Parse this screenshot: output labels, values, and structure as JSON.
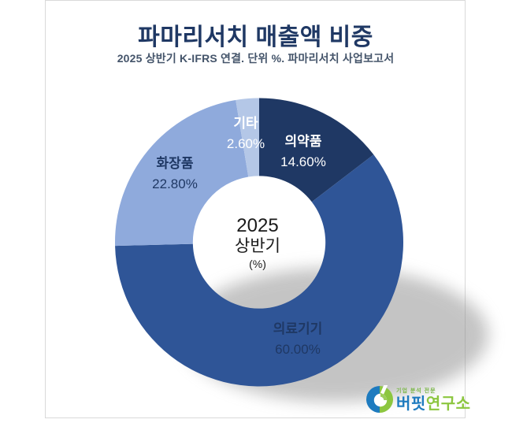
{
  "page": {
    "background": "#FFFFFF",
    "frame_border_color": "#D9D9D9"
  },
  "header": {
    "title": "파마리서치 매출액 비중",
    "subtitle": "2025 상반기 K-IFRS 연결. 단위 %. 파마리서치 사업보고서",
    "title_color": "#1F3864"
  },
  "chart_data": {
    "type": "pie",
    "variant": "donut",
    "title": "파마리서치 매출액 비중",
    "subtitle": "2025 상반기 K-IFRS 연결. 단위 %. 파마리서치 사업보고서",
    "unit": "%",
    "start_angle_deg": 0,
    "direction": "clockwise",
    "inner_radius_ratio": 0.46,
    "legend_position": "none",
    "center_label": {
      "line1": "2025",
      "line2": "상반기",
      "line3": "(%)"
    },
    "slices": [
      {
        "label": "의약품",
        "value": 14.6,
        "display": "14.60%",
        "color": "#1F3864",
        "label_color": "#FFFFFF"
      },
      {
        "label": "의료기기",
        "value": 60.0,
        "display": "60.00%",
        "color": "#2F5597",
        "label_color": "#1F3864"
      },
      {
        "label": "화장품",
        "value": 22.8,
        "display": "22.80%",
        "color": "#8FAADC",
        "label_color": "#1F3864"
      },
      {
        "label": "기타",
        "value": 2.6,
        "display": "2.60%",
        "color": "#B4C7E7",
        "label_color": "#FFFFFF"
      }
    ]
  },
  "logo": {
    "tagline": "기업 분석 전문",
    "name_part1": "버핏",
    "name_part2": "연구소",
    "name_part1_color": "#1E7BBF",
    "name_part2_color": "#8CC63F",
    "icon_blue": "#1E7BBF",
    "icon_green": "#8CC63F"
  }
}
